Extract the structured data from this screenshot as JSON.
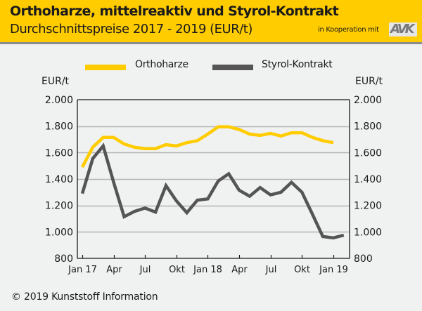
{
  "header": {
    "title": "Orthoharze, mittelreaktiv und Styrol-Kontrakt",
    "subtitle": "Durchschnittspreise 2017 - 2019 (EUR/t)",
    "cooperation_text": "in Kooperation mit",
    "logo_text": "AVK"
  },
  "footer": {
    "copyright": "© 2019 Kunststoff Information"
  },
  "colors": {
    "header_bg": "#ffcc00",
    "orthoharze": "#ffcc00",
    "styrol": "#555555",
    "grid": "#b3b3b3",
    "background": "#f0f1f1"
  },
  "chart_data": {
    "type": "line",
    "title": "Orthoharze, mittelreaktiv und Styrol-Kontrakt",
    "subtitle": "Durchschnittspreise 2017 - 2019 (EUR/t)",
    "ylabel_left": "EUR/t",
    "ylabel_right": "EUR/t",
    "ylim": [
      800,
      2000
    ],
    "yticks": [
      800,
      1000,
      1200,
      1400,
      1600,
      1800,
      2000
    ],
    "ytick_labels": [
      "800",
      "1.000",
      "1.200",
      "1.400",
      "1.600",
      "1.800",
      "2.000"
    ],
    "xticks": [
      "Jan 17",
      "Apr",
      "Jul",
      "Okt",
      "Jan 18",
      "Apr",
      "Jul",
      "Okt",
      "Jan 19"
    ],
    "xtick_month_index": [
      0,
      3,
      6,
      9,
      12,
      15,
      18,
      21,
      24
    ],
    "x_months": [
      "2017-01",
      "2017-02",
      "2017-03",
      "2017-04",
      "2017-05",
      "2017-06",
      "2017-07",
      "2017-08",
      "2017-09",
      "2017-10",
      "2017-11",
      "2017-12",
      "2018-01",
      "2018-02",
      "2018-03",
      "2018-04",
      "2018-05",
      "2018-06",
      "2018-07",
      "2018-08",
      "2018-09",
      "2018-10",
      "2018-11",
      "2018-12",
      "2019-01",
      "2019-02"
    ],
    "grid": true,
    "legend_position": "top",
    "series": [
      {
        "name": "Orthoharze",
        "color": "#ffcc00",
        "values": [
          1490,
          1640,
          1715,
          1715,
          1665,
          1640,
          1630,
          1630,
          1660,
          1650,
          1675,
          1690,
          1740,
          1795,
          1795,
          1775,
          1740,
          1730,
          1745,
          1725,
          1750,
          1750,
          1715,
          1690,
          1675
        ]
      },
      {
        "name": "Styrol-Kontrakt",
        "color": "#555555",
        "values": [
          1290,
          1555,
          1650,
          1375,
          1115,
          1155,
          1180,
          1150,
          1350,
          1235,
          1145,
          1240,
          1250,
          1385,
          1440,
          1315,
          1270,
          1335,
          1280,
          1300,
          1375,
          1300,
          1135,
          965,
          955,
          975
        ]
      }
    ]
  }
}
